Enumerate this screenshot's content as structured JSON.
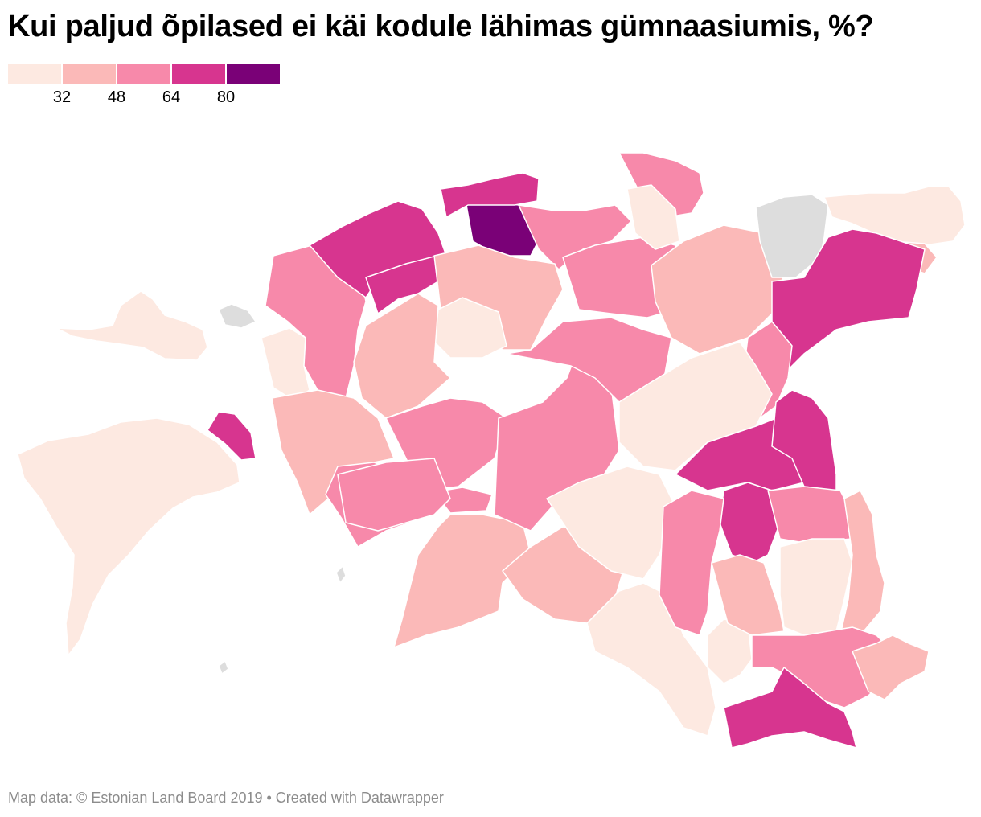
{
  "title": "Kui paljud õpilased ei käi kodule lähimas gümnaasiumis, %?",
  "legend": {
    "colors": [
      "#fde9e1",
      "#fbb9b8",
      "#f789aa",
      "#d7358f",
      "#7a0177"
    ],
    "ticks": [
      "32",
      "48",
      "64",
      "80"
    ]
  },
  "map": {
    "no_data_color": "#dddddd",
    "border_color": "#ffffff",
    "regions": [
      {
        "name": "hiiumaa",
        "bin": 0
      },
      {
        "name": "saaremaa",
        "bin": 0
      },
      {
        "name": "muhu",
        "bin": 3
      },
      {
        "name": "vormsi",
        "bin": null
      },
      {
        "name": "kihnu",
        "bin": null
      },
      {
        "name": "ruhnu",
        "bin": null
      },
      {
        "name": "laanemaa-west",
        "bin": 0
      },
      {
        "name": "laanemaa-central",
        "bin": 2
      },
      {
        "name": "harjumaa-west",
        "bin": 3
      },
      {
        "name": "harjumaa-saue",
        "bin": 3
      },
      {
        "name": "tallinn",
        "bin": 4
      },
      {
        "name": "harjumaa-east",
        "bin": 2
      },
      {
        "name": "harjumaa-north",
        "bin": 3
      },
      {
        "name": "raplamaa-north",
        "bin": 1
      },
      {
        "name": "raplamaa-central",
        "bin": 0
      },
      {
        "name": "raplamaa-south",
        "bin": 1
      },
      {
        "name": "parnumaa-north",
        "bin": 1
      },
      {
        "name": "parnumaa-central",
        "bin": 2
      },
      {
        "name": "parnumaa-west",
        "bin": 2
      },
      {
        "name": "parnu-city",
        "bin": 2
      },
      {
        "name": "parnumaa-south",
        "bin": 1
      },
      {
        "name": "parnumaa-southeast",
        "bin": 1
      },
      {
        "name": "jarvamaa-west",
        "bin": 2
      },
      {
        "name": "jarvamaa-east",
        "bin": 2
      },
      {
        "name": "laane-virumaa-west",
        "bin": 2
      },
      {
        "name": "laane-virumaa-north",
        "bin": 2
      },
      {
        "name": "laane-virumaa-central",
        "bin": 0
      },
      {
        "name": "laane-virumaa-east",
        "bin": 1
      },
      {
        "name": "ida-virumaa-west",
        "bin": null
      },
      {
        "name": "ida-virumaa-north",
        "bin": 0
      },
      {
        "name": "ida-virumaa-narva",
        "bin": 1
      },
      {
        "name": "ida-virumaa-south",
        "bin": 3
      },
      {
        "name": "jogevamaa-north",
        "bin": 2
      },
      {
        "name": "jogevamaa-central",
        "bin": 0
      },
      {
        "name": "viljandimaa-north",
        "bin": 2
      },
      {
        "name": "viljandimaa-central",
        "bin": 0
      },
      {
        "name": "viljandimaa-south",
        "bin": 0
      },
      {
        "name": "tartumaa-north",
        "bin": 3
      },
      {
        "name": "tartumaa-central",
        "bin": 3
      },
      {
        "name": "tartu-city",
        "bin": 3
      },
      {
        "name": "tartumaa-south",
        "bin": 2
      },
      {
        "name": "polvamaa",
        "bin": 0
      },
      {
        "name": "polvamaa-east",
        "bin": 1
      },
      {
        "name": "valgamaa-north",
        "bin": 2
      },
      {
        "name": "valgamaa-south",
        "bin": 0
      },
      {
        "name": "vorumaa-west",
        "bin": 1
      },
      {
        "name": "vorumaa-central",
        "bin": 2
      },
      {
        "name": "vorumaa-south",
        "bin": 3
      },
      {
        "name": "vorumaa-east",
        "bin": 1
      }
    ]
  },
  "footer": "Map data: © Estonian Land Board 2019 • Created with Datawrapper"
}
